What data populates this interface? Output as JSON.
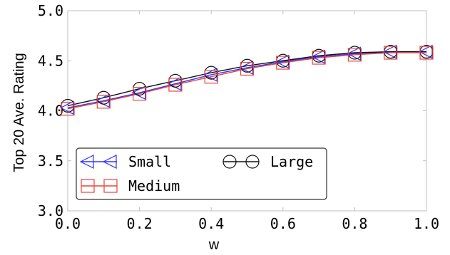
{
  "chart_data": {
    "type": "line",
    "xlabel": "w",
    "ylabel": "Top 20 Ave. Rating",
    "xlim": [
      0.0,
      1.0
    ],
    "ylim": [
      3.0,
      5.0
    ],
    "x": [
      0.0,
      0.1,
      0.2,
      0.3,
      0.4,
      0.5,
      0.6,
      0.7,
      0.8,
      0.9,
      1.0
    ],
    "xticks": [
      "0.0",
      "0.2",
      "0.4",
      "0.6",
      "0.8",
      "1.0"
    ],
    "yticks": [
      "3.0",
      "3.5",
      "4.0",
      "4.5",
      "5.0"
    ],
    "grid": false,
    "legend_position": "lower-left",
    "series": [
      {
        "name": "Small",
        "color": "#3333ff",
        "marker": "triangle-left",
        "values": [
          4.03,
          4.1,
          4.18,
          4.27,
          4.36,
          4.43,
          4.49,
          4.54,
          4.57,
          4.59,
          4.59
        ]
      },
      {
        "name": "Large",
        "color": "#111111",
        "marker": "circle",
        "values": [
          4.05,
          4.13,
          4.22,
          4.3,
          4.38,
          4.45,
          4.5,
          4.55,
          4.58,
          4.59,
          4.59
        ]
      },
      {
        "name": "Medium",
        "color": "#e8443a",
        "marker": "square",
        "values": [
          4.02,
          4.09,
          4.17,
          4.26,
          4.34,
          4.42,
          4.48,
          4.53,
          4.56,
          4.58,
          4.58
        ]
      }
    ]
  }
}
